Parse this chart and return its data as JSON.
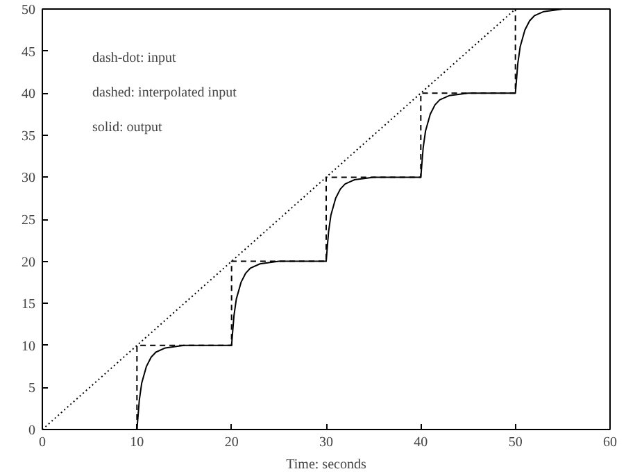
{
  "chart_data": {
    "type": "line",
    "xlabel": "Time: seconds",
    "xlim": [
      0,
      60
    ],
    "ylim": [
      0,
      50
    ],
    "xticks": [
      0,
      10,
      20,
      30,
      40,
      50,
      60
    ],
    "yticks": [
      0,
      5,
      10,
      15,
      20,
      25,
      30,
      35,
      40,
      45,
      50
    ],
    "grid": false,
    "marker": "none",
    "annotations": [
      "dash-dot: input",
      "dashed:   interpolated input",
      "solid:    output"
    ],
    "series": [
      {
        "color": "#000000",
        "line_style": "dotted",
        "x": [
          0,
          50
        ],
        "values": [
          0,
          50
        ]
      },
      {
        "color": "#000000",
        "line_style": "dashed",
        "x": [
          10,
          10,
          20,
          20,
          30,
          30,
          40,
          40,
          50,
          50
        ],
        "values": [
          0,
          10,
          10,
          20,
          20,
          30,
          30,
          40,
          40,
          50
        ]
      },
      {
        "color": "#000000",
        "line_style": "solid",
        "x": [
          10,
          10.25,
          10.5,
          11,
          11.5,
          12,
          13,
          15,
          20,
          20.25,
          20.5,
          21,
          21.5,
          22,
          23,
          25,
          30,
          30.25,
          30.5,
          31,
          31.5,
          32,
          33,
          35,
          40,
          40.25,
          40.5,
          41,
          41.5,
          42,
          43,
          45,
          50,
          50.25,
          50.5,
          51,
          51.5,
          52,
          53,
          55,
          57
        ],
        "values": [
          0,
          3.5,
          5.5,
          7.5,
          8.6,
          9.2,
          9.7,
          10,
          10,
          13.5,
          15.5,
          17.5,
          18.6,
          19.2,
          19.7,
          20,
          20,
          23.5,
          25.5,
          27.5,
          28.6,
          29.2,
          29.7,
          30,
          30,
          33.5,
          35.5,
          37.5,
          38.6,
          39.2,
          39.7,
          40,
          40,
          43.5,
          45.5,
          47.5,
          48.6,
          49.2,
          49.7,
          50,
          50
        ]
      }
    ]
  }
}
